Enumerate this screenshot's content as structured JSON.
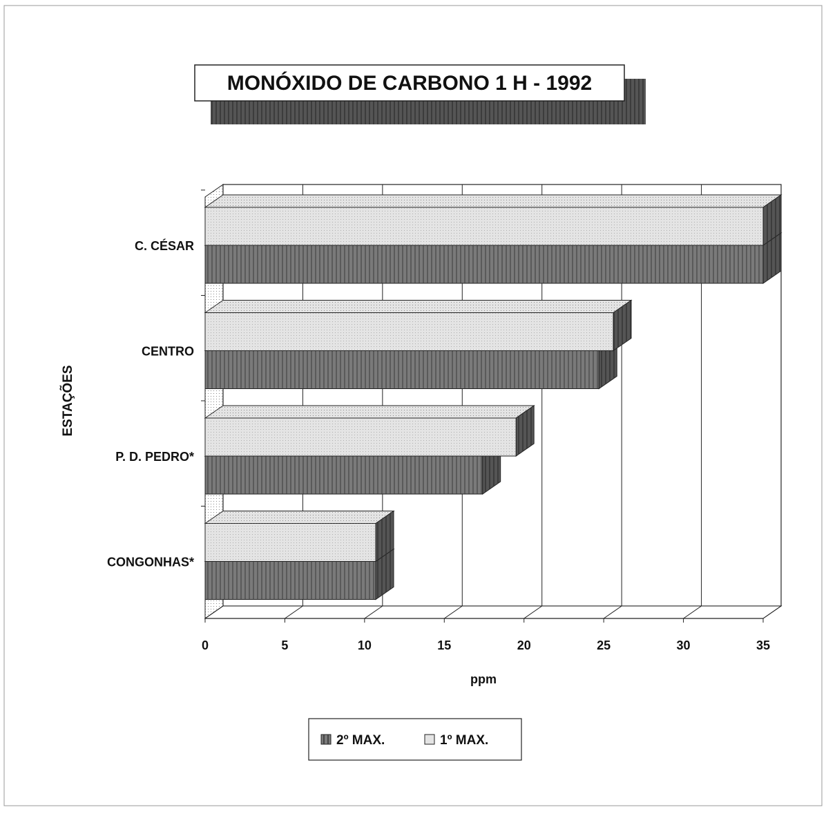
{
  "chart_data": {
    "type": "bar3d_horizontal",
    "title": "MONÓXIDO DE CARBONO 1 H - 1992",
    "xlabel": "ppm",
    "ylabel": "ESTAÇÕES",
    "categories": [
      "C. CÉSAR",
      "CENTRO",
      "P. D. PEDRO*",
      "CONGONHAS*"
    ],
    "series": [
      {
        "name": "2º MAX.",
        "color": "#7a7a7a",
        "values": [
          35,
          24.7,
          17.4,
          10.7
        ]
      },
      {
        "name": "1º MAX.",
        "color": "#e4e4e4",
        "values": [
          35,
          25.6,
          19.5,
          10.7
        ]
      }
    ],
    "xlim": [
      0,
      35
    ],
    "xticks": [
      0,
      5,
      10,
      15,
      20,
      25,
      30,
      35
    ],
    "grid": true
  }
}
